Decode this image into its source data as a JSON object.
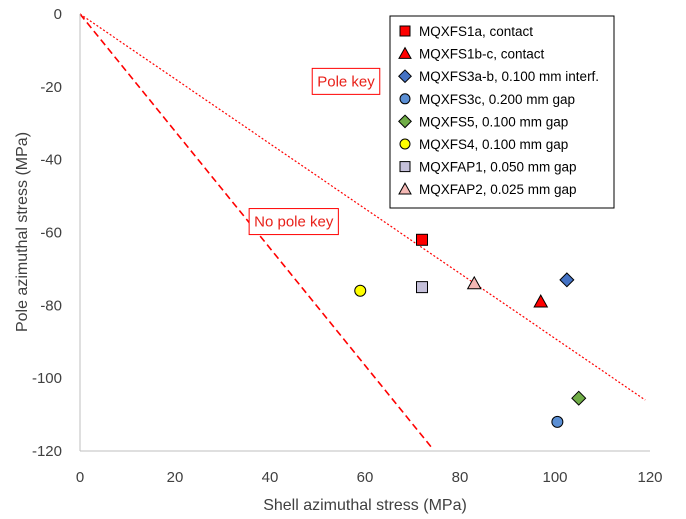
{
  "chart_data": {
    "type": "scatter",
    "xlabel": "Shell azimuthal stress (MPa)",
    "ylabel": "Pole azimuthal  stress (MPa)",
    "xlim": [
      0,
      120
    ],
    "ylim": [
      -120,
      0
    ],
    "x_ticks": [
      "0",
      "20",
      "40",
      "60",
      "80",
      "100",
      "120"
    ],
    "y_ticks": [
      "0",
      "-20",
      "-40",
      "-60",
      "-80",
      "-100",
      "-120"
    ],
    "grid": false,
    "legend_position": "top-right",
    "series": [
      {
        "name": "MQXFS1a, contact",
        "marker": "square",
        "fill": "#ff0000",
        "x": 72,
        "y": -62
      },
      {
        "name": "MQXFS1b-c, contact",
        "marker": "triangle",
        "fill": "#ff0000",
        "x": 97,
        "y": -79
      },
      {
        "name": "MQXFS3a-b, 0.100 mm interf.",
        "marker": "diamond",
        "fill": "#4472c4",
        "x": 102.5,
        "y": -73
      },
      {
        "name": "MQXFS3c, 0.200 mm gap",
        "marker": "circle",
        "fill": "#5b8fd4",
        "x": 100.5,
        "y": -112
      },
      {
        "name": "MQXFS5, 0.100 mm gap",
        "marker": "diamond",
        "fill": "#70ad47",
        "x": 105,
        "y": -105.5
      },
      {
        "name": "MQXFS4, 0.100 mm gap",
        "marker": "circle",
        "fill": "#ffff00",
        "x": 59,
        "y": -76
      },
      {
        "name": "MQXFAP1, 0.050 mm gap",
        "marker": "square",
        "fill": "#c5c0da",
        "x": 72,
        "y": -75
      },
      {
        "name": "MQXFAP2, 0.025 mm gap",
        "marker": "triangle",
        "fill": "#f4b8b4",
        "x": 83,
        "y": -74
      }
    ],
    "lines": [
      {
        "name": "pole-key-line",
        "style": "dotted",
        "color": "#ff0000",
        "x": [
          0,
          119
        ],
        "y": [
          0,
          -106
        ]
      },
      {
        "name": "no-pole-key-line",
        "style": "dashed",
        "color": "#ff0000",
        "x": [
          0,
          74
        ],
        "y": [
          0,
          -119
        ]
      }
    ],
    "annotations": [
      {
        "text": "Pole key",
        "x": 56,
        "y": -18.5
      },
      {
        "text": "No pole key",
        "x": 45,
        "y": -57
      }
    ]
  }
}
